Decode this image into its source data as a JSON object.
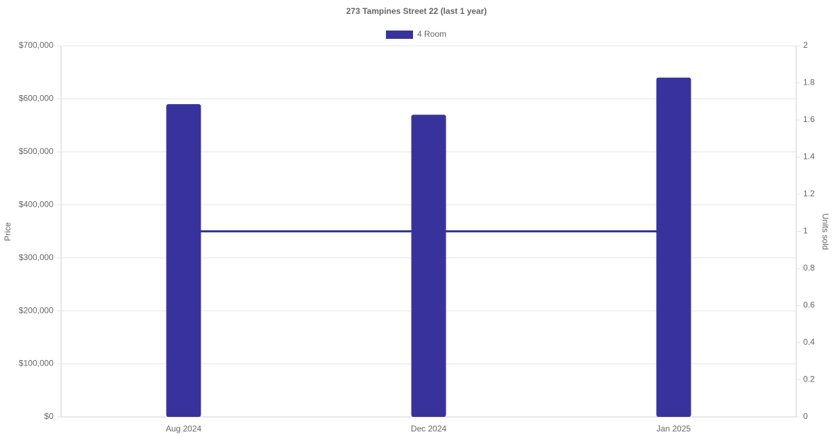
{
  "chart_data": {
    "type": "bar_line",
    "title": "273 Tampines Street 22 (last 1 year)",
    "categories": [
      "Aug 2024",
      "Dec 2024",
      "Jan 2025"
    ],
    "series": [
      {
        "name": "4 Room",
        "color": "#38339c",
        "values": [
          590000,
          570000,
          640000
        ]
      },
      {
        "type": "line",
        "color": "#38339c",
        "values": [
          1,
          1,
          1
        ],
        "axis": "y2"
      }
    ],
    "y_label": "Price",
    "y2_label": "Units sold",
    "ylim": [
      0,
      700000
    ],
    "yticks": [
      {
        "value": 0,
        "label": "$0"
      },
      {
        "value": 100000,
        "label": "$100,000"
      },
      {
        "value": 200000,
        "label": "$200,000"
      },
      {
        "value": 300000,
        "label": "$300,000"
      },
      {
        "value": 400000,
        "label": "$400,000"
      },
      {
        "value": 500000,
        "label": "$500,000"
      },
      {
        "value": 600000,
        "label": "$600,000"
      },
      {
        "value": 700000,
        "label": "$700,000"
      }
    ],
    "y2lim": [
      0,
      2
    ],
    "y2ticks": [
      0,
      0.2,
      0.4,
      0.6,
      0.8,
      1,
      1.2,
      1.4,
      1.6,
      1.8,
      2
    ],
    "grid": true,
    "legend": "top"
  }
}
